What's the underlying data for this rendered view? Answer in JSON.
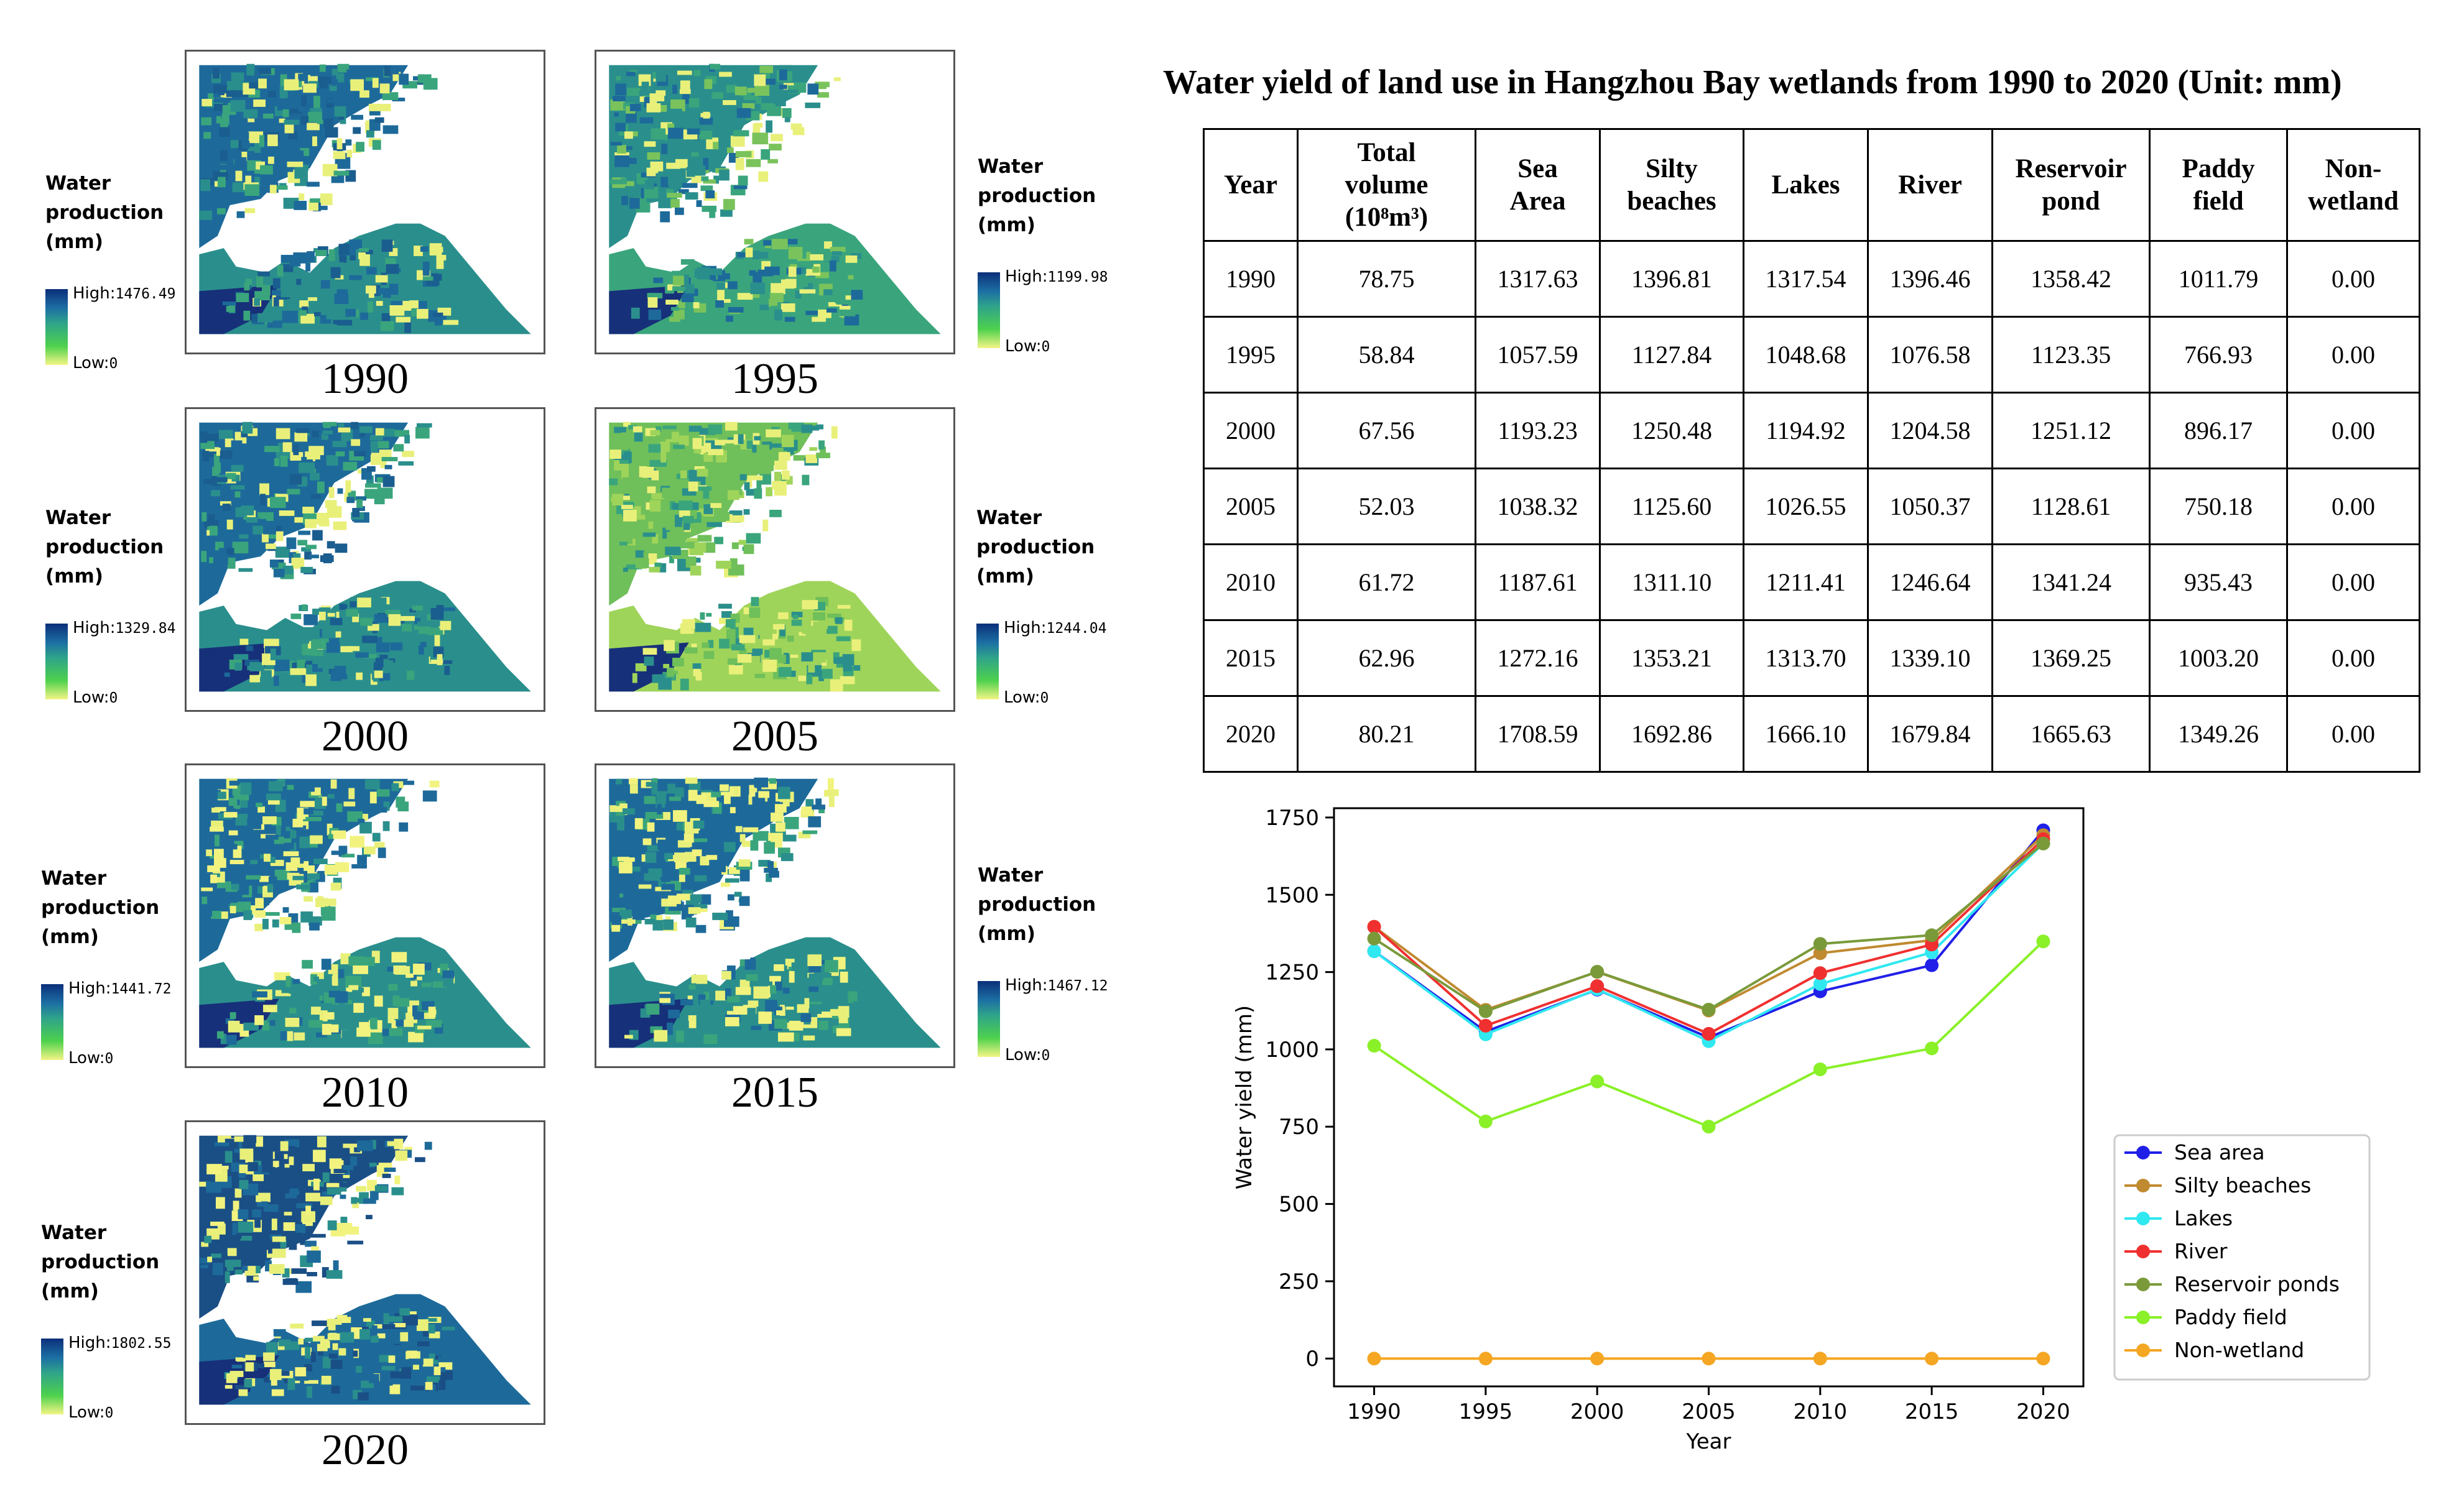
{
  "maps": [
    {
      "year": "1990",
      "legend_title_lines": [
        "Water",
        "production",
        "(mm)"
      ],
      "high_label": "High:",
      "high_value": "1476.49",
      "low_label": "Low:",
      "low_value": "0"
    },
    {
      "year": "1995",
      "legend_title_lines": [
        "Water",
        "production",
        "(mm)"
      ],
      "high_label": "High:",
      "high_value": "1199.98",
      "low_label": "Low:",
      "low_value": "0"
    },
    {
      "year": "2000",
      "legend_title_lines": [
        "Water",
        "production",
        "(mm)"
      ],
      "high_label": "High:",
      "high_value": "1329.84",
      "low_label": "Low:",
      "low_value": "0"
    },
    {
      "year": "2005",
      "legend_title_lines": [
        "Water",
        "production",
        "(mm)"
      ],
      "high_label": "High:",
      "high_value": "1244.04",
      "low_label": "Low:",
      "low_value": "0"
    },
    {
      "year": "2010",
      "legend_title_lines": [
        "Water",
        "production",
        "(mm)"
      ],
      "high_label": "High:",
      "high_value": "1441.72",
      "low_label": "Low:",
      "low_value": "0"
    },
    {
      "year": "2015",
      "legend_title_lines": [
        "Water",
        "production",
        "(mm)"
      ],
      "high_label": "High:",
      "high_value": "1467.12",
      "low_label": "Low:",
      "low_value": "0"
    },
    {
      "year": "2020",
      "legend_title_lines": [
        "Water",
        "production",
        "(mm)"
      ],
      "high_label": "High:",
      "high_value": "1802.55",
      "low_label": "Low:",
      "low_value": "0"
    }
  ],
  "table": {
    "title": "Water yield of land use in Hangzhou Bay wetlands from 1990 to 2020 (Unit: mm)",
    "headers": [
      [
        "Year"
      ],
      [
        "Total",
        "volume",
        "(10⁸m³)"
      ],
      [
        "Sea",
        "Area"
      ],
      [
        "Silty",
        "beaches"
      ],
      [
        "Lakes"
      ],
      [
        "River"
      ],
      [
        "Reservoir",
        "pond"
      ],
      [
        "Paddy",
        "field"
      ],
      [
        "Non-",
        "wetland"
      ]
    ],
    "rows": [
      [
        "1990",
        "78.75",
        "1317.63",
        "1396.81",
        "1317.54",
        "1396.46",
        "1358.42",
        "1011.79",
        "0.00"
      ],
      [
        "1995",
        "58.84",
        "1057.59",
        "1127.84",
        "1048.68",
        "1076.58",
        "1123.35",
        "766.93",
        "0.00"
      ],
      [
        "2000",
        "67.56",
        "1193.23",
        "1250.48",
        "1194.92",
        "1204.58",
        "1251.12",
        "896.17",
        "0.00"
      ],
      [
        "2005",
        "52.03",
        "1038.32",
        "1125.60",
        "1026.55",
        "1050.37",
        "1128.61",
        "750.18",
        "0.00"
      ],
      [
        "2010",
        "61.72",
        "1187.61",
        "1311.10",
        "1211.41",
        "1246.64",
        "1341.24",
        "935.43",
        "0.00"
      ],
      [
        "2015",
        "62.96",
        "1272.16",
        "1353.21",
        "1313.70",
        "1339.10",
        "1369.25",
        "1003.20",
        "0.00"
      ],
      [
        "2020",
        "80.21",
        "1708.59",
        "1692.86",
        "1666.10",
        "1679.84",
        "1665.63",
        "1349.26",
        "0.00"
      ]
    ]
  },
  "chart_data": {
    "type": "line",
    "title": "",
    "xlabel": "Year",
    "ylabel": "Water yield (mm)",
    "x": [
      1990,
      1995,
      2000,
      2005,
      2010,
      2015,
      2020
    ],
    "xticks": [
      "1990",
      "1995",
      "2000",
      "2005",
      "2010",
      "2015",
      "2020"
    ],
    "yticks": [
      "0",
      "250",
      "500",
      "750",
      "1000",
      "1250",
      "1500",
      "1750"
    ],
    "ylim": [
      -90,
      1780
    ],
    "xlim": [
      1988.2,
      2021.8
    ],
    "grid": false,
    "legend_position": "center-right",
    "series": [
      {
        "name": "Sea area",
        "color": "#2020e8",
        "values": [
          1317.63,
          1057.59,
          1193.23,
          1038.32,
          1187.61,
          1272.16,
          1708.59
        ]
      },
      {
        "name": "Silty beaches",
        "color": "#c08a30",
        "values": [
          1396.81,
          1127.84,
          1250.48,
          1125.6,
          1311.1,
          1353.21,
          1692.86
        ]
      },
      {
        "name": "Lakes",
        "color": "#30e8f0",
        "values": [
          1317.54,
          1048.68,
          1194.92,
          1026.55,
          1211.41,
          1313.7,
          1666.1
        ]
      },
      {
        "name": "River",
        "color": "#f03030",
        "values": [
          1396.46,
          1076.58,
          1204.58,
          1050.37,
          1246.64,
          1339.1,
          1679.84
        ]
      },
      {
        "name": "Reservoir ponds",
        "color": "#7a9a3a",
        "values": [
          1358.42,
          1123.35,
          1251.12,
          1128.61,
          1341.24,
          1369.25,
          1665.63
        ]
      },
      {
        "name": "Paddy field",
        "color": "#8af028",
        "values": [
          1011.79,
          766.93,
          896.17,
          750.18,
          935.43,
          1003.2,
          1349.26
        ]
      },
      {
        "name": "Non-wetland",
        "color": "#f5a623",
        "values": [
          0.0,
          0.0,
          0.0,
          0.0,
          0.0,
          0.0,
          0.0
        ]
      }
    ]
  }
}
